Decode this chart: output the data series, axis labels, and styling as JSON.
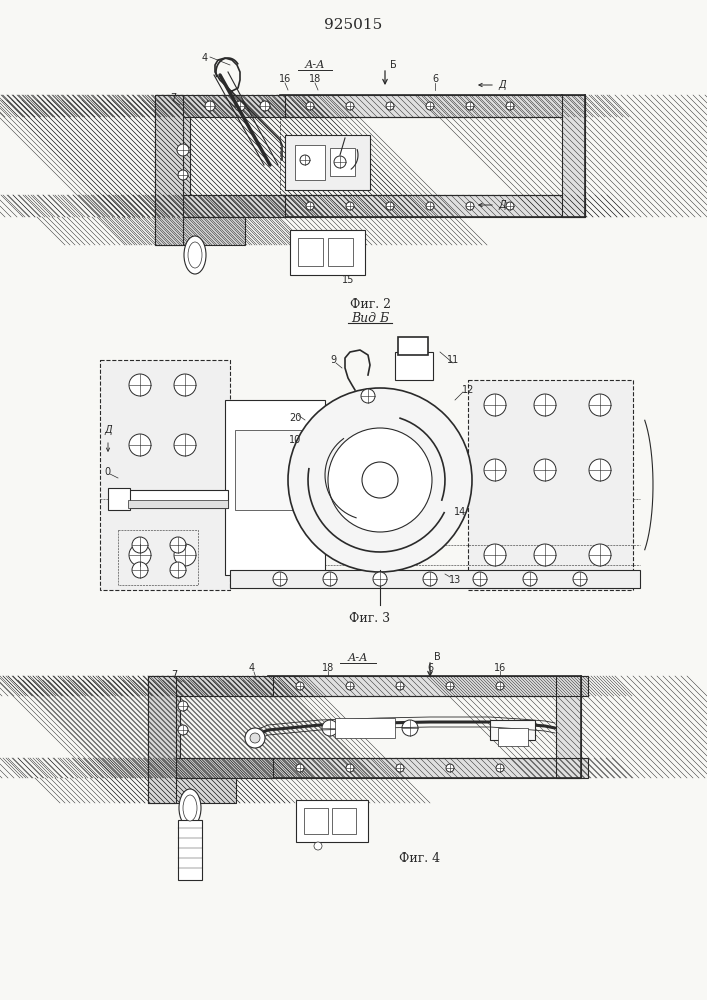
{
  "patent_number": "925015",
  "bg_color": "#f8f8f5",
  "line_color": "#2a2a2a",
  "fig2_label": "Фиг. 2",
  "fig3_label": "Фиг. 3",
  "fig4_label": "Фиг. 4",
  "view_b_label": "Вид Б",
  "section_aa": "А-А",
  "dim_d": "Д",
  "dim_b_fig2": "Б",
  "dim_v_fig4": "В"
}
